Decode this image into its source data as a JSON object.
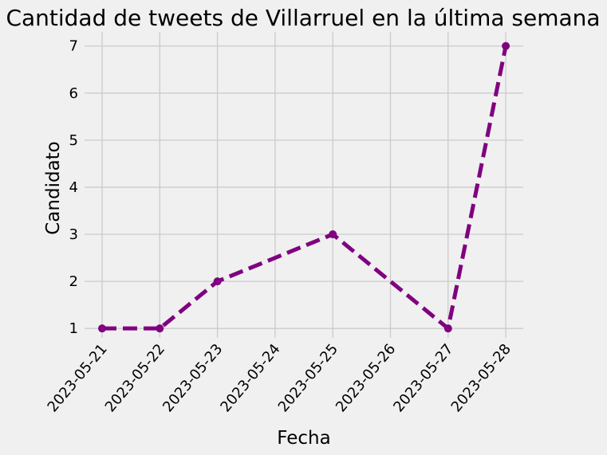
{
  "chart_data": {
    "type": "line",
    "title": "Cantidad de tweets de Villarruel en la última semana",
    "xlabel": "Fecha",
    "ylabel": "Candidato",
    "x_ticks": [
      "2023-05-21",
      "2023-05-22",
      "2023-05-23",
      "2023-05-24",
      "2023-05-25",
      "2023-05-26",
      "2023-05-27",
      "2023-05-28"
    ],
    "y_ticks": [
      1,
      2,
      3,
      4,
      5,
      6,
      7
    ],
    "ylim": [
      0.8,
      7.3
    ],
    "grid": true,
    "series": [
      {
        "color": "#800080",
        "line_style": "dashed",
        "marker": "circle",
        "points": [
          {
            "x": "2023-05-21",
            "y": 1
          },
          {
            "x": "2023-05-22",
            "y": 1
          },
          {
            "x": "2023-05-23",
            "y": 2
          },
          {
            "x": "2023-05-25",
            "y": 3
          },
          {
            "x": "2023-05-27",
            "y": 1
          },
          {
            "x": "2023-05-28",
            "y": 7
          }
        ]
      }
    ]
  }
}
